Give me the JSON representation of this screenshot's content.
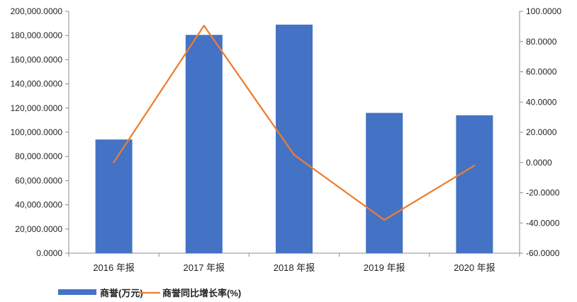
{
  "chart_data": {
    "type": "bar",
    "categories": [
      "2016 年报",
      "2017 年报",
      "2018 年报",
      "2019 年报",
      "2020 年报"
    ],
    "series": [
      {
        "name": "商誉(万元)",
        "type": "bar",
        "axis": "left",
        "color": "#4472C4",
        "values": [
          94000,
          180500,
          189000,
          116000,
          114000
        ]
      },
      {
        "name": "商誉同比增长率(%)",
        "type": "line",
        "axis": "right",
        "color": "#ED7D31",
        "values": [
          0.2,
          90.5,
          5.0,
          -38.0,
          -2.0
        ]
      }
    ],
    "y_left": {
      "min": 0,
      "max": 200000,
      "step": 20000,
      "tick_labels": [
        "0.0000",
        "20,000.0000",
        "40,000.0000",
        "60,000.0000",
        "80,000.0000",
        "100,000.0000",
        "120,000.0000",
        "140,000.0000",
        "160,000.0000",
        "180,000.0000",
        "200,000.0000"
      ]
    },
    "y_right": {
      "min": -60,
      "max": 100,
      "step": 20,
      "tick_labels": [
        "-60.0000",
        "-40.0000",
        "-20.0000",
        "0.0000",
        "20.0000",
        "40.0000",
        "60.0000",
        "80.0000",
        "100.0000"
      ]
    },
    "grid": false,
    "legend_position": "bottom-left"
  }
}
